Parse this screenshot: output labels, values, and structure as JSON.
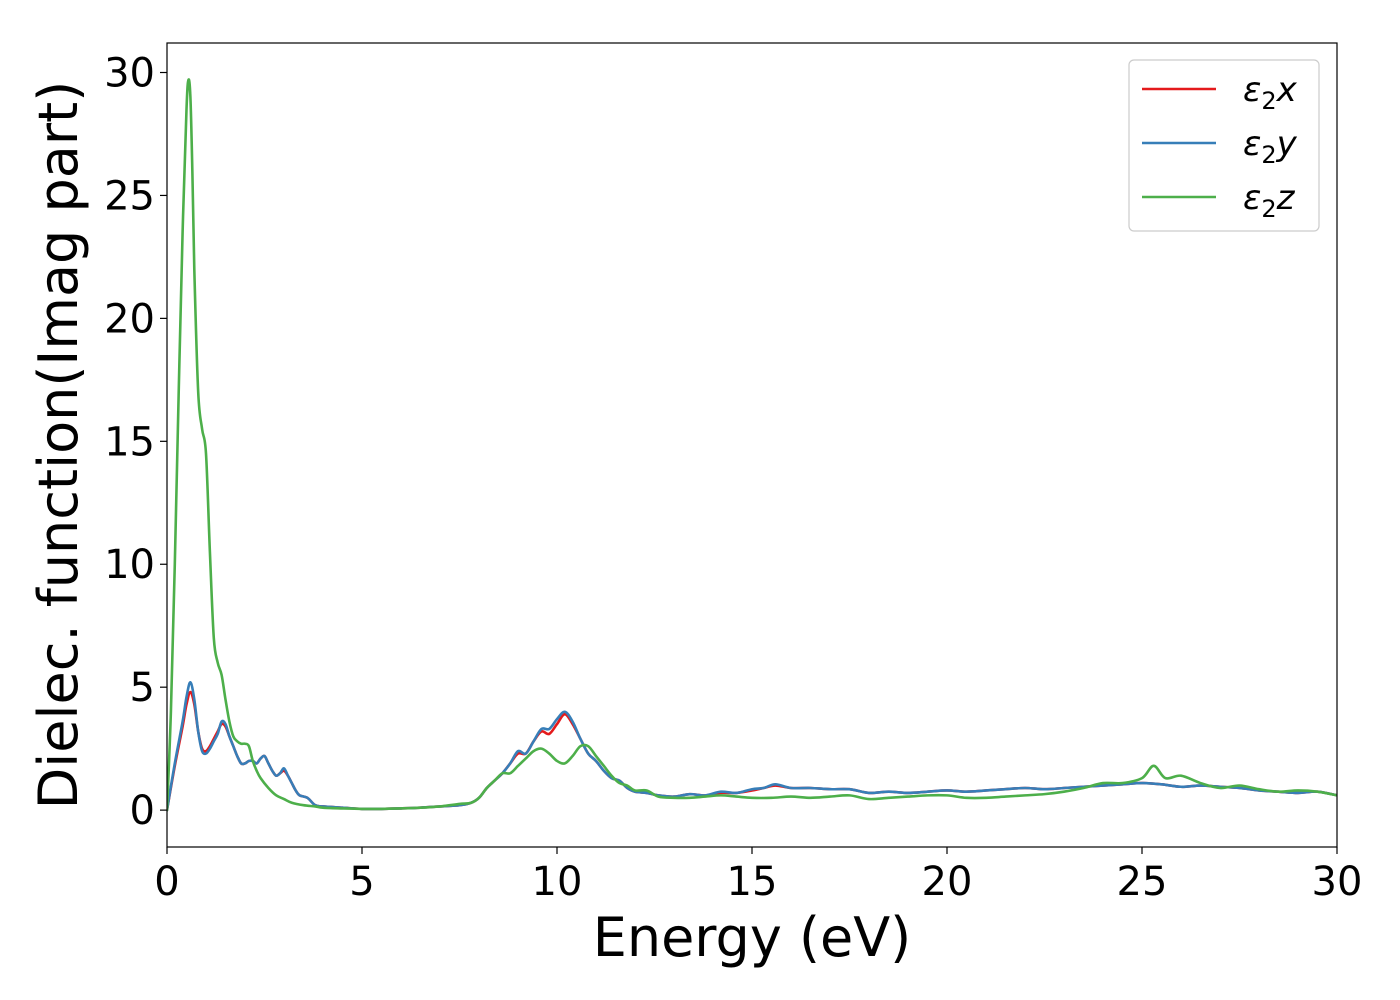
{
  "chart_data": {
    "type": "line",
    "title": "",
    "xlabel": "Energy (eV)",
    "ylabel": "Dielec. function(Imag part)",
    "xlim": [
      0,
      30
    ],
    "ylim": [
      -1.5,
      31.2
    ],
    "xticks": [
      0,
      5,
      10,
      15,
      20,
      25,
      30
    ],
    "yticks": [
      0,
      5,
      10,
      15,
      20,
      25,
      30
    ],
    "grid": false,
    "legend_position": "top-right",
    "series": [
      {
        "name": "ε₂x",
        "legend": {
          "base": "ε",
          "sub": "2",
          "suffix": "x"
        },
        "color": "#e41a1c",
        "x": [
          0,
          0.2,
          0.4,
          0.5,
          0.6,
          0.7,
          0.8,
          0.9,
          1.0,
          1.1,
          1.2,
          1.3,
          1.4,
          1.5,
          1.6,
          1.7,
          1.8,
          1.9,
          2.0,
          2.1,
          2.2,
          2.3,
          2.4,
          2.5,
          2.6,
          2.7,
          2.8,
          2.9,
          3.0,
          3.1,
          3.2,
          3.3,
          3.4,
          3.6,
          3.8,
          4.0,
          4.5,
          5.0,
          5.5,
          6.0,
          6.5,
          7.0,
          7.5,
          7.8,
          8.0,
          8.2,
          8.4,
          8.6,
          8.8,
          9.0,
          9.2,
          9.4,
          9.6,
          9.8,
          10.0,
          10.2,
          10.4,
          10.6,
          10.8,
          11.0,
          11.2,
          11.4,
          11.6,
          11.8,
          12.0,
          12.3,
          12.6,
          13.0,
          13.4,
          13.8,
          14.2,
          14.6,
          15.0,
          15.3,
          15.6,
          16.0,
          16.5,
          17.0,
          17.5,
          18.0,
          18.5,
          19.0,
          19.5,
          20.0,
          20.5,
          21.0,
          21.5,
          22.0,
          22.5,
          23.0,
          23.5,
          24.0,
          24.5,
          25.0,
          25.5,
          26.0,
          26.5,
          27.0,
          27.5,
          28.0,
          28.5,
          29.0,
          29.5,
          30.0
        ],
        "y": [
          0,
          1.8,
          3.4,
          4.3,
          4.8,
          4.3,
          3.2,
          2.5,
          2.4,
          2.6,
          2.9,
          3.2,
          3.5,
          3.4,
          3.0,
          2.6,
          2.2,
          1.9,
          1.9,
          2.0,
          2.0,
          1.9,
          2.1,
          2.2,
          1.9,
          1.6,
          1.4,
          1.5,
          1.6,
          1.4,
          1.1,
          0.8,
          0.6,
          0.5,
          0.2,
          0.15,
          0.1,
          0.05,
          0.05,
          0.07,
          0.1,
          0.15,
          0.2,
          0.3,
          0.5,
          0.9,
          1.2,
          1.5,
          1.9,
          2.3,
          2.3,
          2.8,
          3.2,
          3.1,
          3.5,
          3.9,
          3.5,
          2.9,
          2.3,
          2.0,
          1.6,
          1.3,
          1.2,
          0.9,
          0.75,
          0.7,
          0.6,
          0.55,
          0.65,
          0.6,
          0.7,
          0.7,
          0.8,
          0.9,
          1.0,
          0.9,
          0.9,
          0.85,
          0.85,
          0.7,
          0.75,
          0.7,
          0.75,
          0.8,
          0.75,
          0.8,
          0.85,
          0.9,
          0.85,
          0.9,
          0.95,
          1.0,
          1.05,
          1.1,
          1.05,
          0.95,
          1.0,
          0.95,
          0.9,
          0.8,
          0.75,
          0.7,
          0.75,
          0.6
        ]
      },
      {
        "name": "ε₂y",
        "legend": {
          "base": "ε",
          "sub": "2",
          "suffix": "y"
        },
        "color": "#377eb8",
        "x": [
          0,
          0.2,
          0.4,
          0.5,
          0.6,
          0.7,
          0.8,
          0.9,
          1.0,
          1.1,
          1.2,
          1.3,
          1.4,
          1.5,
          1.6,
          1.7,
          1.8,
          1.9,
          2.0,
          2.1,
          2.2,
          2.3,
          2.4,
          2.5,
          2.6,
          2.7,
          2.8,
          2.9,
          3.0,
          3.1,
          3.2,
          3.3,
          3.4,
          3.6,
          3.8,
          4.0,
          4.5,
          5.0,
          5.5,
          6.0,
          6.5,
          7.0,
          7.5,
          7.8,
          8.0,
          8.2,
          8.4,
          8.6,
          8.8,
          9.0,
          9.2,
          9.4,
          9.6,
          9.8,
          10.0,
          10.2,
          10.4,
          10.6,
          10.8,
          11.0,
          11.2,
          11.4,
          11.6,
          11.8,
          12.0,
          12.3,
          12.6,
          13.0,
          13.4,
          13.8,
          14.2,
          14.6,
          15.0,
          15.3,
          15.6,
          16.0,
          16.5,
          17.0,
          17.5,
          18.0,
          18.5,
          19.0,
          19.5,
          20.0,
          20.5,
          21.0,
          21.5,
          22.0,
          22.5,
          23.0,
          23.5,
          24.0,
          24.5,
          25.0,
          25.5,
          26.0,
          26.5,
          27.0,
          27.5,
          28.0,
          28.5,
          29.0,
          29.5,
          30.0
        ],
        "y": [
          0,
          1.9,
          3.6,
          4.6,
          5.2,
          4.5,
          3.2,
          2.4,
          2.3,
          2.5,
          2.8,
          3.1,
          3.6,
          3.5,
          3.0,
          2.6,
          2.2,
          1.9,
          1.9,
          2.0,
          2.0,
          1.9,
          2.1,
          2.2,
          1.9,
          1.6,
          1.4,
          1.5,
          1.7,
          1.4,
          1.1,
          0.8,
          0.6,
          0.5,
          0.2,
          0.15,
          0.1,
          0.05,
          0.05,
          0.07,
          0.1,
          0.15,
          0.2,
          0.3,
          0.5,
          0.9,
          1.2,
          1.5,
          1.9,
          2.4,
          2.3,
          2.8,
          3.3,
          3.3,
          3.7,
          4.0,
          3.6,
          2.9,
          2.3,
          2.0,
          1.6,
          1.3,
          1.2,
          0.9,
          0.75,
          0.7,
          0.6,
          0.55,
          0.65,
          0.6,
          0.75,
          0.7,
          0.85,
          0.9,
          1.05,
          0.9,
          0.9,
          0.85,
          0.85,
          0.7,
          0.75,
          0.7,
          0.75,
          0.8,
          0.75,
          0.8,
          0.85,
          0.9,
          0.85,
          0.9,
          0.95,
          1.0,
          1.05,
          1.1,
          1.05,
          0.95,
          1.0,
          0.95,
          0.9,
          0.8,
          0.75,
          0.7,
          0.75,
          0.6
        ]
      },
      {
        "name": "ε₂z",
        "legend": {
          "base": "ε",
          "sub": "2",
          "suffix": "z"
        },
        "color": "#4daf4a",
        "x": [
          0,
          0.1,
          0.2,
          0.3,
          0.4,
          0.5,
          0.55,
          0.6,
          0.65,
          0.7,
          0.8,
          0.9,
          1.0,
          1.1,
          1.2,
          1.3,
          1.4,
          1.5,
          1.6,
          1.7,
          1.8,
          1.9,
          2.0,
          2.1,
          2.2,
          2.3,
          2.4,
          2.6,
          2.8,
          3.0,
          3.2,
          3.5,
          3.8,
          4.0,
          4.5,
          5.0,
          5.5,
          6.0,
          6.5,
          7.0,
          7.5,
          7.8,
          8.0,
          8.2,
          8.4,
          8.6,
          8.8,
          9.0,
          9.2,
          9.4,
          9.6,
          9.8,
          10.0,
          10.2,
          10.4,
          10.6,
          10.8,
          11.0,
          11.2,
          11.4,
          11.6,
          11.8,
          12.0,
          12.3,
          12.6,
          13.0,
          13.4,
          13.8,
          14.2,
          14.6,
          15.0,
          15.5,
          16.0,
          16.5,
          17.0,
          17.5,
          18.0,
          18.5,
          19.0,
          19.5,
          20.0,
          20.5,
          21.0,
          21.5,
          22.0,
          22.5,
          23.0,
          23.5,
          24.0,
          24.5,
          25.0,
          25.3,
          25.6,
          26.0,
          26.5,
          27.0,
          27.5,
          28.0,
          28.5,
          29.0,
          29.5,
          30.0
        ],
        "y": [
          0,
          4.0,
          10.0,
          17.0,
          23.5,
          28.5,
          29.7,
          29.0,
          26.0,
          22.0,
          17.0,
          15.5,
          14.5,
          10.5,
          7.0,
          6.0,
          5.5,
          4.5,
          3.6,
          3.0,
          2.8,
          2.7,
          2.7,
          2.6,
          2.0,
          1.6,
          1.3,
          0.9,
          0.6,
          0.45,
          0.3,
          0.2,
          0.15,
          0.1,
          0.07,
          0.05,
          0.05,
          0.07,
          0.1,
          0.15,
          0.25,
          0.3,
          0.5,
          0.9,
          1.2,
          1.5,
          1.5,
          1.8,
          2.1,
          2.4,
          2.5,
          2.3,
          2.0,
          1.9,
          2.2,
          2.6,
          2.6,
          2.2,
          1.8,
          1.4,
          1.1,
          1.0,
          0.8,
          0.8,
          0.55,
          0.5,
          0.5,
          0.55,
          0.6,
          0.55,
          0.5,
          0.5,
          0.55,
          0.5,
          0.55,
          0.6,
          0.45,
          0.5,
          0.55,
          0.6,
          0.6,
          0.5,
          0.5,
          0.55,
          0.6,
          0.65,
          0.75,
          0.9,
          1.1,
          1.1,
          1.3,
          1.8,
          1.3,
          1.4,
          1.1,
          0.9,
          1.0,
          0.85,
          0.75,
          0.8,
          0.75,
          0.6
        ]
      }
    ]
  }
}
